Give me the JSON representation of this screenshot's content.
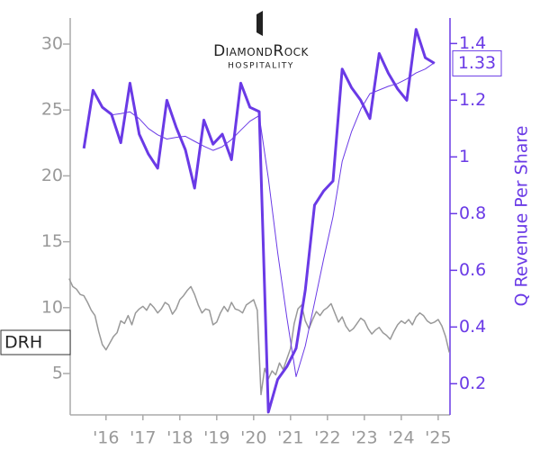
{
  "chart_data": {
    "type": "line",
    "ticker": "DRH",
    "logo": {
      "name": "DiamondRock",
      "subtitle": "HOSPITALITY"
    },
    "y2label": "Q Revenue Per Share",
    "xlim": [
      2015.03,
      2025.32
    ],
    "xticks": [
      {
        "value": 2016,
        "label": "'16"
      },
      {
        "value": 2017,
        "label": "'17"
      },
      {
        "value": 2018,
        "label": "'18"
      },
      {
        "value": 2019,
        "label": "'19"
      },
      {
        "value": 2020,
        "label": "'20"
      },
      {
        "value": 2021,
        "label": "'21"
      },
      {
        "value": 2022,
        "label": "'22"
      },
      {
        "value": 2023,
        "label": "'23"
      },
      {
        "value": 2024,
        "label": "'24"
      },
      {
        "value": 2025,
        "label": "'25"
      }
    ],
    "ylim": [
      1.86,
      31.98
    ],
    "yticks": [
      5,
      10,
      15,
      20,
      25,
      30
    ],
    "y2lim": [
      0.09,
      1.49
    ],
    "y2ticks": [
      0.2,
      0.4,
      0.6,
      0.8,
      1.0,
      1.2,
      1.4
    ],
    "series": [
      {
        "color": "#999999",
        "axis": "y",
        "width": 1.5,
        "x": [
          2015.0,
          2015.1,
          2015.2,
          2015.3,
          2015.4,
          2015.5,
          2015.6,
          2015.7,
          2015.8,
          2015.9,
          2016.0,
          2016.1,
          2016.2,
          2016.3,
          2016.4,
          2016.5,
          2016.6,
          2016.7,
          2016.8,
          2016.9,
          2017.0,
          2017.1,
          2017.2,
          2017.3,
          2017.4,
          2017.5,
          2017.6,
          2017.7,
          2017.8,
          2017.9,
          2018.0,
          2018.1,
          2018.2,
          2018.3,
          2018.4,
          2018.5,
          2018.6,
          2018.7,
          2018.8,
          2018.9,
          2019.0,
          2019.1,
          2019.2,
          2019.3,
          2019.4,
          2019.5,
          2019.6,
          2019.7,
          2019.8,
          2019.9,
          2020.0,
          2020.1,
          2020.2,
          2020.3,
          2020.4,
          2020.5,
          2020.6,
          2020.7,
          2020.8,
          2020.9,
          2021.0,
          2021.1,
          2021.2,
          2021.3,
          2021.4,
          2021.5,
          2021.6,
          2021.7,
          2021.8,
          2021.9,
          2022.0,
          2022.1,
          2022.2,
          2022.3,
          2022.4,
          2022.5,
          2022.6,
          2022.7,
          2022.8,
          2022.9,
          2023.0,
          2023.1,
          2023.2,
          2023.3,
          2023.4,
          2023.5,
          2023.6,
          2023.7,
          2023.8,
          2023.9,
          2024.0,
          2024.1,
          2024.2,
          2024.3,
          2024.4,
          2024.5,
          2024.6,
          2024.7,
          2024.8,
          2024.9,
          2025.0,
          2025.1,
          2025.2,
          2025.3
        ],
        "values": [
          12.2,
          11.6,
          11.4,
          11.0,
          10.9,
          10.4,
          9.8,
          9.4,
          8.2,
          7.2,
          6.8,
          7.3,
          7.8,
          8.1,
          9.0,
          8.8,
          9.4,
          8.7,
          9.6,
          9.9,
          10.1,
          9.8,
          10.3,
          10.0,
          9.6,
          9.9,
          10.4,
          10.2,
          9.5,
          9.9,
          10.6,
          10.9,
          11.3,
          11.6,
          11.0,
          10.2,
          9.6,
          9.9,
          9.8,
          8.7,
          8.9,
          9.6,
          10.1,
          9.7,
          10.4,
          9.9,
          9.8,
          9.6,
          10.2,
          10.4,
          10.6,
          9.8,
          3.4,
          5.4,
          4.6,
          5.2,
          4.9,
          5.8,
          5.3,
          6.1,
          6.9,
          8.8,
          9.9,
          10.2,
          9.0,
          8.4,
          9.1,
          9.7,
          9.4,
          9.8,
          10.0,
          10.3,
          9.6,
          8.9,
          9.3,
          8.6,
          8.2,
          8.4,
          8.8,
          9.2,
          9.0,
          8.4,
          8.0,
          8.3,
          8.5,
          8.1,
          7.9,
          7.6,
          8.2,
          8.7,
          9.0,
          8.8,
          9.1,
          8.7,
          9.3,
          9.6,
          9.4,
          9.0,
          8.8,
          8.9,
          9.1,
          8.6,
          7.8,
          6.6
        ]
      },
      {
        "color": "#6a3ae6",
        "axis": "y2",
        "width": 3,
        "x": [
          2015.4,
          2015.65,
          2015.9,
          2016.15,
          2016.4,
          2016.65,
          2016.9,
          2017.15,
          2017.4,
          2017.65,
          2017.9,
          2018.15,
          2018.4,
          2018.65,
          2018.9,
          2019.15,
          2019.4,
          2019.65,
          2019.9,
          2020.15,
          2020.4,
          2020.65,
          2020.9,
          2021.15,
          2021.4,
          2021.65,
          2021.9,
          2022.15,
          2022.4,
          2022.65,
          2022.9,
          2023.15,
          2023.4,
          2023.65,
          2023.9,
          2024.15,
          2024.4,
          2024.65,
          2024.9
        ],
        "values": [
          1.03,
          1.235,
          1.175,
          1.15,
          1.05,
          1.26,
          1.08,
          1.01,
          0.96,
          1.2,
          1.105,
          1.025,
          0.89,
          1.13,
          1.045,
          1.08,
          0.99,
          1.26,
          1.175,
          1.16,
          0.1,
          0.215,
          0.26,
          0.325,
          0.53,
          0.83,
          0.88,
          0.915,
          1.31,
          1.245,
          1.2,
          1.135,
          1.365,
          1.295,
          1.24,
          1.2,
          1.45,
          1.35,
          1.33
        ]
      },
      {
        "color": "#6a3ae6",
        "axis": "y2",
        "width": 1,
        "x": [
          2015.4,
          2015.65,
          2015.9,
          2016.15,
          2016.4,
          2016.65,
          2016.9,
          2017.15,
          2017.4,
          2017.65,
          2017.9,
          2018.15,
          2018.4,
          2018.65,
          2018.9,
          2019.15,
          2019.4,
          2019.65,
          2019.9,
          2020.15,
          2020.4,
          2020.65,
          2020.9,
          2021.15,
          2021.4,
          2021.65,
          2021.9,
          2022.15,
          2022.4,
          2022.65,
          2022.9,
          2023.15,
          2023.4,
          2023.65,
          2023.9,
          2024.15,
          2024.4,
          2024.65,
          2024.9
        ],
        "values": [
          null,
          null,
          null,
          1.148,
          1.153,
          1.159,
          1.135,
          1.1,
          1.078,
          1.063,
          1.069,
          1.073,
          1.055,
          1.038,
          1.023,
          1.036,
          1.061,
          1.094,
          1.126,
          1.146,
          0.924,
          0.663,
          0.434,
          0.225,
          0.333,
          0.486,
          0.641,
          0.789,
          0.984,
          1.088,
          1.168,
          1.223,
          1.236,
          1.249,
          1.259,
          1.275,
          1.296,
          1.31,
          1.333
        ]
      }
    ]
  }
}
